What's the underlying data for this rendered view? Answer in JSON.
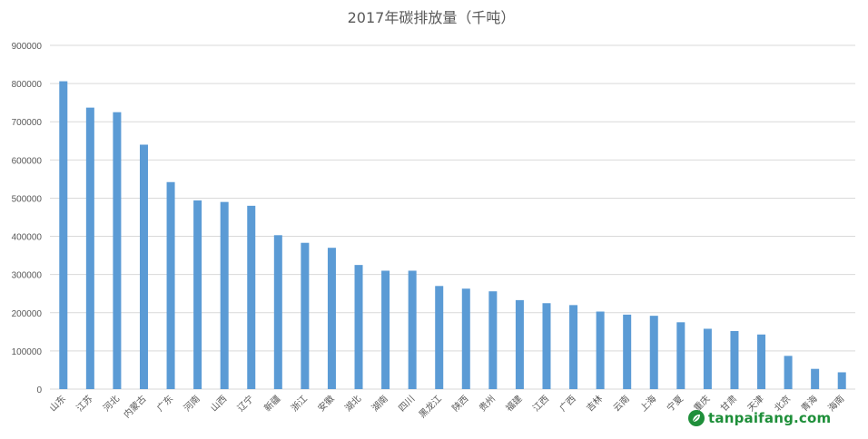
{
  "chart_data": {
    "type": "bar",
    "title": "2017年碳排放量（千吨）",
    "categories": [
      "山东",
      "江苏",
      "河北",
      "内蒙古",
      "广东",
      "河南",
      "山西",
      "辽宁",
      "新疆",
      "浙江",
      "安徽",
      "湖北",
      "湖南",
      "四川",
      "黑龙江",
      "陕西",
      "贵州",
      "福建",
      "江西",
      "广西",
      "吉林",
      "云南",
      "上海",
      "宁夏",
      "重庆",
      "甘肃",
      "天津",
      "北京",
      "青海",
      "海南"
    ],
    "values": [
      806000,
      737000,
      725000,
      640000,
      542000,
      494000,
      490000,
      480000,
      403000,
      383000,
      370000,
      325000,
      310000,
      310000,
      270000,
      263000,
      256000,
      233000,
      225000,
      220000,
      203000,
      195000,
      192000,
      175000,
      158000,
      152000,
      143000,
      87000,
      53000,
      44000
    ],
    "ylim": [
      0,
      900000
    ],
    "yticks": [
      "0",
      "100000",
      "200000",
      "300000",
      "400000",
      "500000",
      "600000",
      "700000",
      "800000",
      "900000"
    ],
    "bar_color": "#5b9bd5",
    "grid": true,
    "legend": false
  },
  "watermark": {
    "text": "tanpaifang.com",
    "color": "#1f8f3a",
    "icon": "leaf-logo-icon"
  }
}
